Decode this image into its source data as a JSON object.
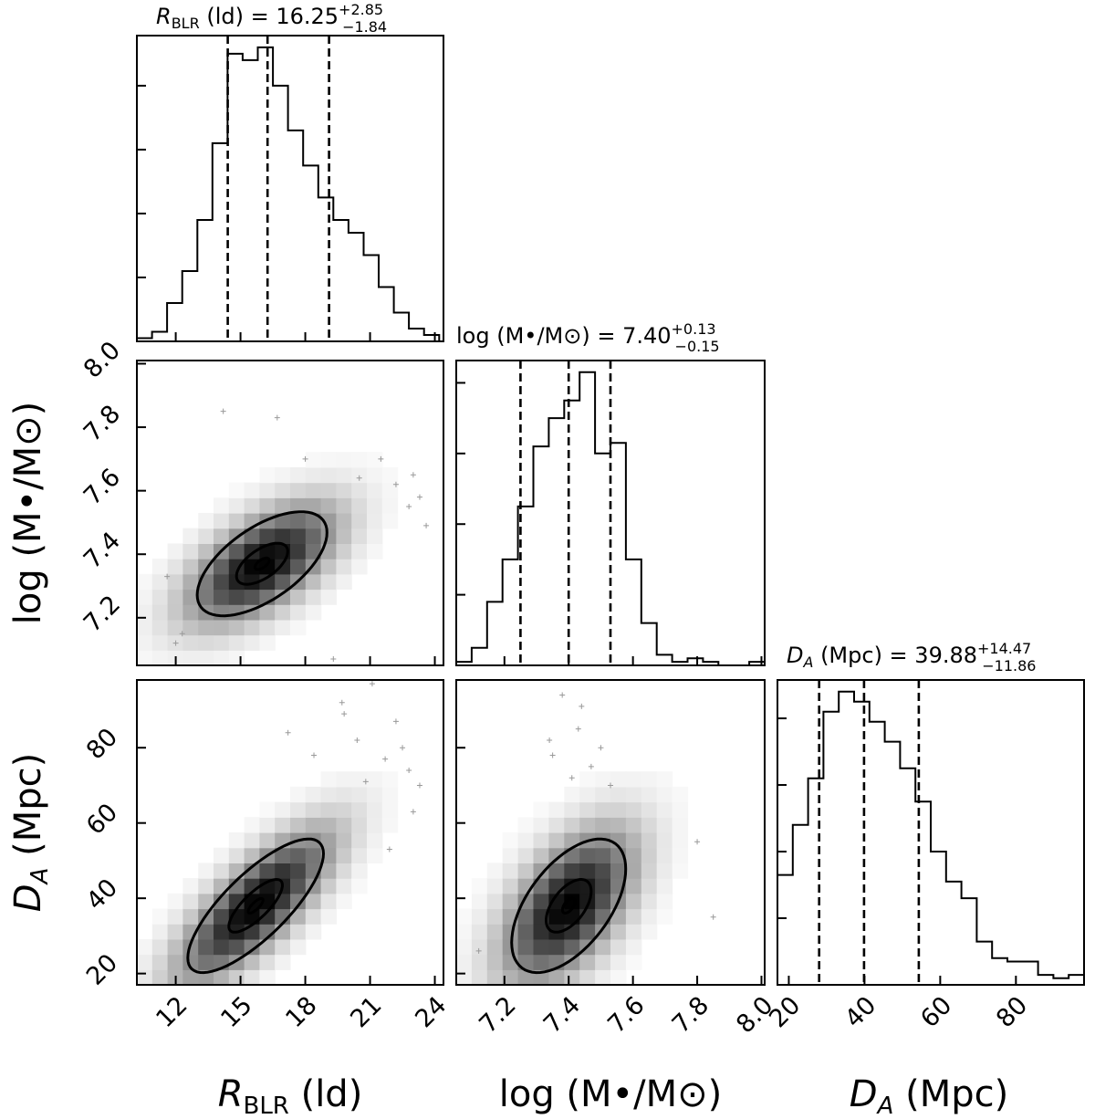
{
  "chart_data": {
    "type": "corner",
    "parameters": [
      {
        "id": "r_blr",
        "label": "R_BLR (ld)",
        "label_main": "R",
        "label_sub": "BLR",
        "label_rest": " (ld)",
        "range": [
          10.2,
          24.4
        ],
        "ticks": [
          12,
          15,
          18,
          21,
          24
        ],
        "tick_labels": [
          "12",
          "15",
          "18",
          "21",
          "24"
        ],
        "title": {
          "prefix": " (ld) = ",
          "median": "16.25",
          "plus": "+2.85",
          "minus": "−1.84"
        },
        "quantiles": [
          14.41,
          16.25,
          19.1
        ],
        "hist": {
          "edges": [
            10.2,
            10.9,
            11.6,
            12.3,
            13.0,
            13.7,
            14.4,
            15.1,
            15.8,
            16.5,
            17.2,
            17.9,
            18.6,
            19.3,
            20.0,
            20.7,
            21.4,
            22.1,
            22.8,
            23.5,
            24.2
          ],
          "counts": [
            1,
            3,
            12,
            22,
            38,
            62,
            90,
            88,
            92,
            80,
            66,
            55,
            45,
            38,
            34,
            27,
            17,
            9,
            4,
            2
          ]
        }
      },
      {
        "id": "log_m",
        "label": "log (M•/M⊙)",
        "label_rest": "log (M•/M⊙)",
        "range": [
          7.05,
          8.01
        ],
        "ticks": [
          7.2,
          7.4,
          7.6,
          7.8,
          8.0
        ],
        "tick_labels": [
          "7.2",
          "7.4",
          "7.6",
          "7.8",
          "8.0"
        ],
        "title": {
          "prefix": "log (M•/M⊙) = ",
          "median": "7.40",
          "plus": "+0.13",
          "minus": "−0.15"
        },
        "quantiles": [
          7.25,
          7.4,
          7.53
        ],
        "hist": {
          "edges": [
            7.05,
            7.098,
            7.146,
            7.194,
            7.242,
            7.29,
            7.338,
            7.386,
            7.434,
            7.482,
            7.53,
            7.578,
            7.626,
            7.674,
            7.722,
            7.77,
            7.818,
            7.866,
            7.914,
            7.962,
            8.01
          ],
          "counts": [
            1,
            5,
            18,
            30,
            45,
            62,
            70,
            75,
            83,
            60,
            63,
            30,
            12,
            3,
            1,
            2,
            1,
            0,
            0,
            1
          ]
        }
      },
      {
        "id": "d_a",
        "label": "D_A (Mpc)",
        "label_main": "D",
        "label_sub": "A",
        "label_rest": " (Mpc)",
        "range": [
          17,
          98
        ],
        "ticks": [
          20,
          40,
          60,
          80
        ],
        "tick_labels": [
          "20",
          "40",
          "60",
          "80"
        ],
        "title": {
          "prefix": " (Mpc) = ",
          "median": "39.88",
          "plus": "+14.47",
          "minus": "−11.86"
        },
        "quantiles": [
          28.02,
          39.88,
          54.35
        ],
        "hist": {
          "edges": [
            17,
            21.05,
            25.1,
            29.15,
            33.2,
            37.25,
            41.3,
            45.35,
            49.4,
            53.45,
            57.5,
            61.55,
            65.6,
            69.65,
            73.7,
            77.75,
            81.8,
            85.85,
            89.9,
            93.95,
            98
          ],
          "counts": [
            33,
            48,
            62,
            82,
            88,
            85,
            79,
            73,
            65,
            55,
            40,
            31,
            26,
            13,
            8,
            7,
            7,
            3,
            2,
            3
          ]
        }
      }
    ],
    "panels_2d": [
      {
        "x": "r_blr",
        "y": "log_m",
        "mean": [
          16.0,
          7.37
        ],
        "sd": [
          2.2,
          0.12
        ],
        "corr": 0.6,
        "outliers": [
          [
            11.6,
            7.33
          ],
          [
            12.0,
            7.12
          ],
          [
            14.2,
            7.85
          ],
          [
            16.7,
            7.83
          ],
          [
            20.5,
            7.64
          ],
          [
            22.2,
            7.62
          ],
          [
            22.8,
            7.55
          ],
          [
            23.3,
            7.58
          ],
          [
            23.6,
            7.49
          ],
          [
            19.3,
            7.07
          ],
          [
            12.3,
            7.15
          ],
          [
            21.5,
            7.7
          ],
          [
            18.0,
            7.7
          ],
          [
            23.0,
            7.65
          ]
        ]
      },
      {
        "x": "r_blr",
        "y": "d_a",
        "mean": [
          15.7,
          38
        ],
        "sd": [
          2.3,
          13
        ],
        "corr": 0.78,
        "outliers": [
          [
            17.2,
            84
          ],
          [
            19.8,
            89
          ],
          [
            21.1,
            97
          ],
          [
            22.2,
            87
          ],
          [
            20.4,
            82
          ],
          [
            22.8,
            74
          ],
          [
            21.7,
            77
          ],
          [
            18.4,
            78
          ],
          [
            23.3,
            70
          ],
          [
            21.9,
            53
          ],
          [
            23.0,
            63
          ],
          [
            20.8,
            71
          ],
          [
            22.5,
            80
          ],
          [
            19.7,
            92
          ]
        ]
      },
      {
        "x": "log_m",
        "y": "d_a",
        "mean": [
          7.4,
          38
        ],
        "sd": [
          0.13,
          13
        ],
        "corr": 0.55,
        "outliers": [
          [
            7.43,
            85
          ],
          [
            7.35,
            78
          ],
          [
            7.5,
            80
          ],
          [
            7.44,
            91
          ],
          [
            7.41,
            72
          ],
          [
            7.47,
            75
          ],
          [
            7.34,
            82
          ],
          [
            7.85,
            35
          ],
          [
            7.8,
            55
          ],
          [
            7.12,
            26
          ],
          [
            7.38,
            94
          ],
          [
            7.53,
            70
          ]
        ]
      }
    ],
    "axis_labels": {
      "bottom": [
        "R_BLR (ld)",
        "log (M•/M⊙)",
        "D_A (Mpc)"
      ],
      "left": [
        "log (M•/M⊙)",
        "D_A (Mpc)"
      ]
    },
    "contour_levels_sigma": [
      1,
      2,
      3
    ]
  }
}
